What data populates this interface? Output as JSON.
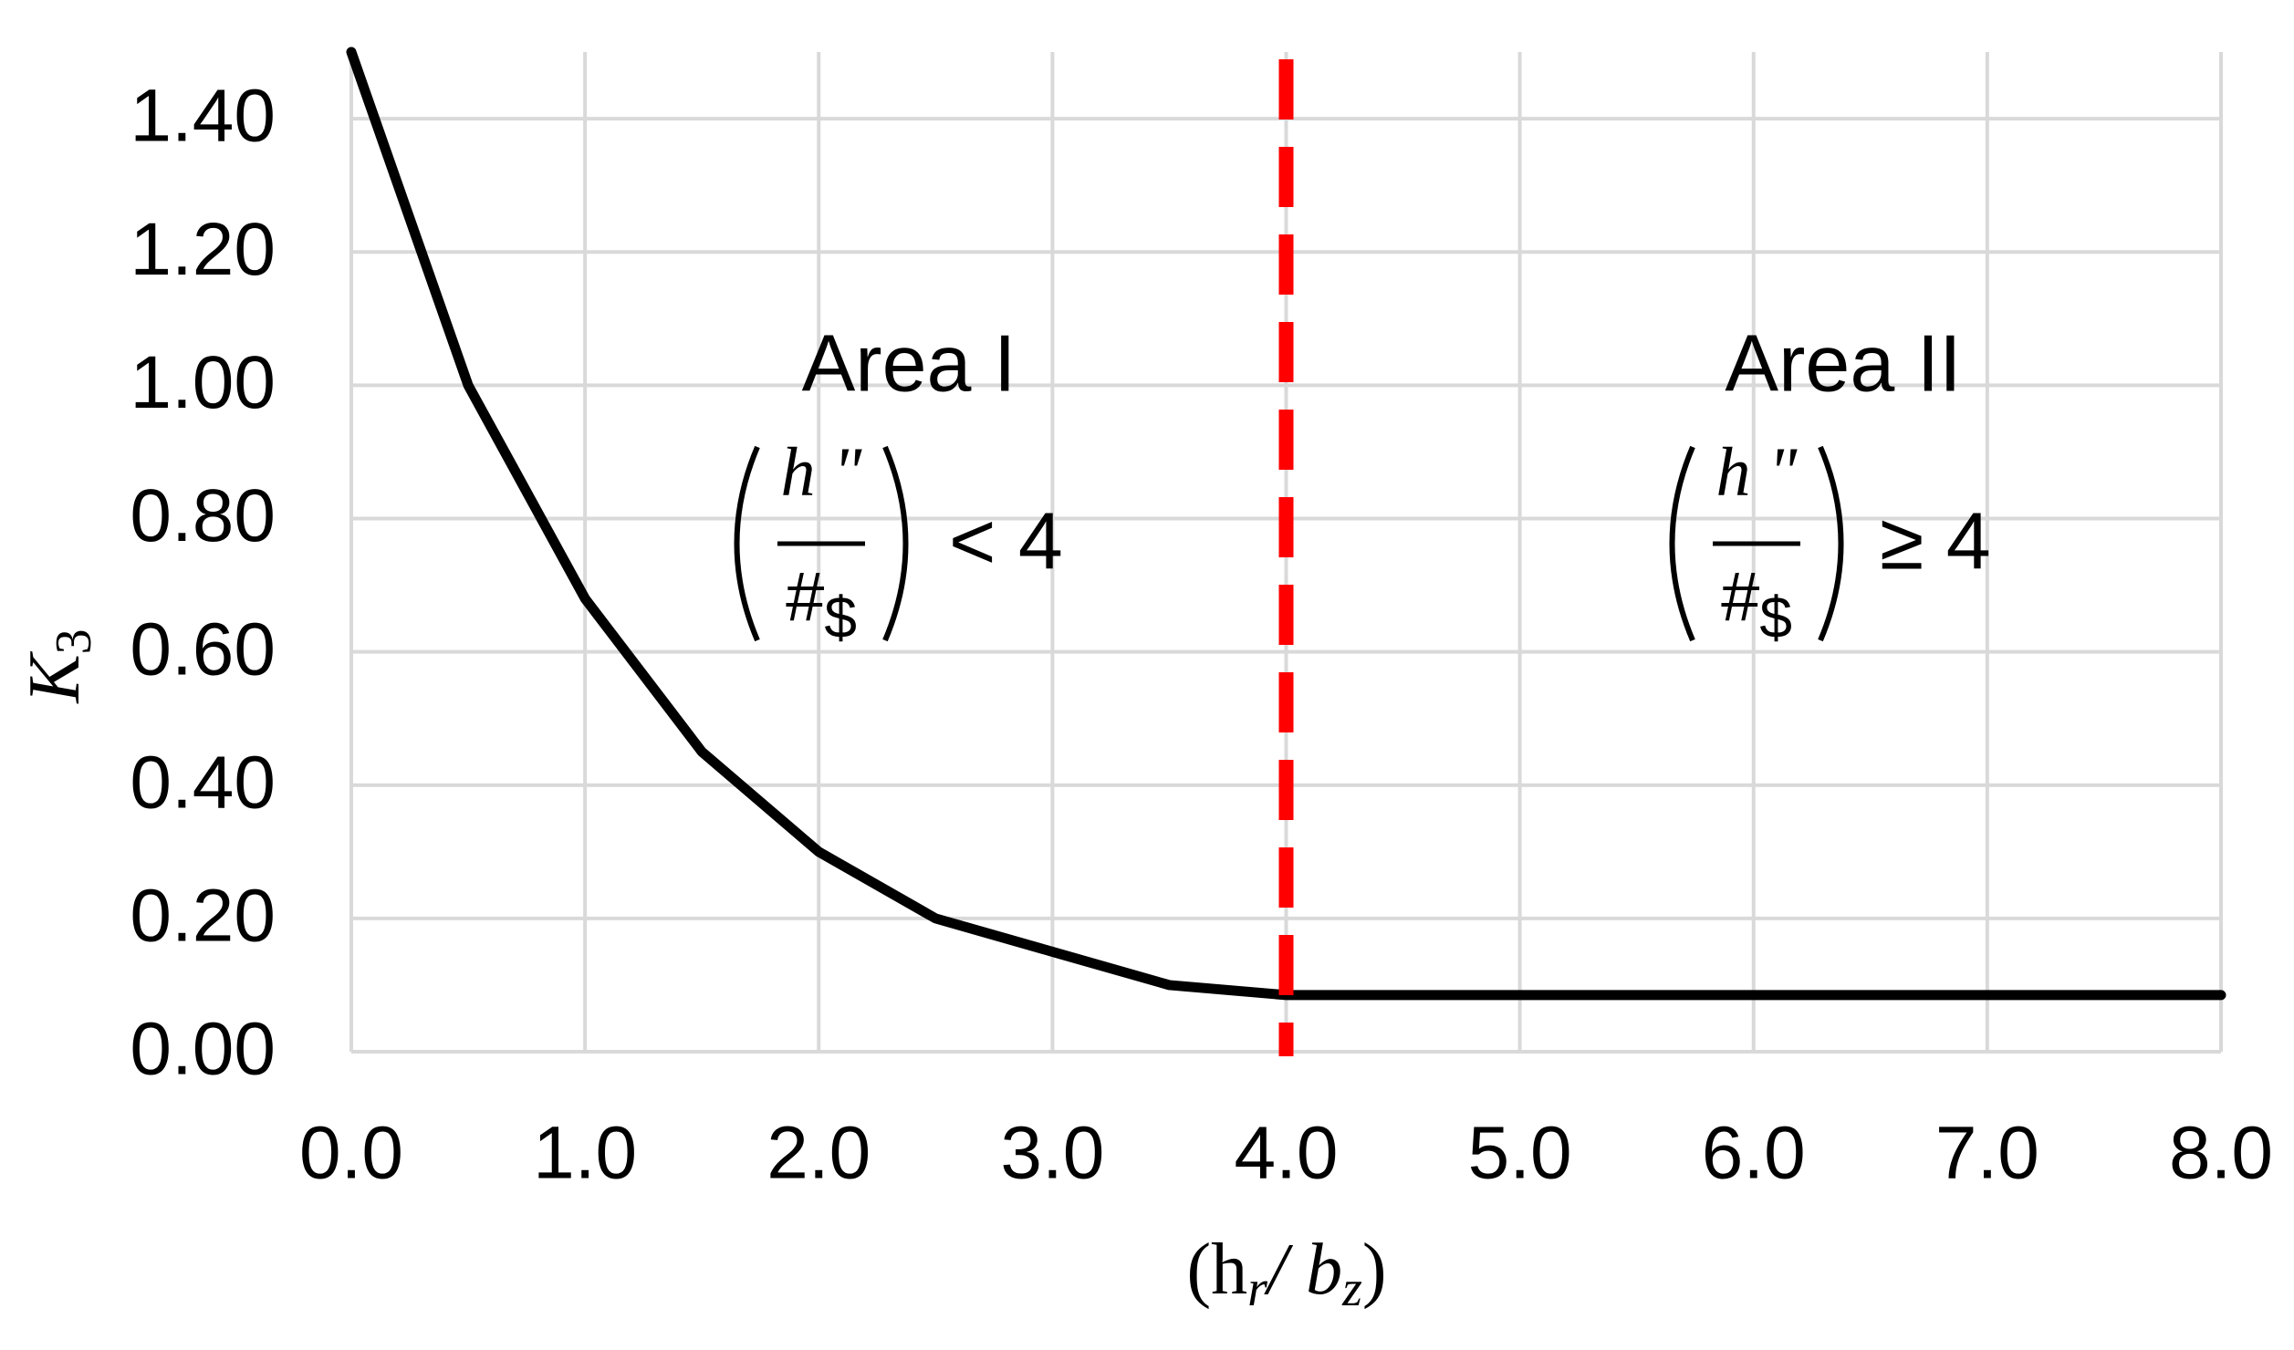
{
  "chart_data": {
    "type": "line",
    "x": [
      0,
      0.5,
      1,
      1.5,
      2,
      2.5,
      3,
      3.5,
      4,
      8
    ],
    "values": [
      1.5,
      1.0,
      0.68,
      0.45,
      0.3,
      0.2,
      0.15,
      0.1,
      0.085,
      0.085
    ],
    "color": "#000000",
    "xlim": [
      0,
      8
    ],
    "ylim": [
      0,
      1.5
    ],
    "xticks": [
      {
        "value": 0,
        "label": "0.0"
      },
      {
        "value": 1,
        "label": "1.0"
      },
      {
        "value": 2,
        "label": "2.0"
      },
      {
        "value": 3,
        "label": "3.0"
      },
      {
        "value": 4,
        "label": "4.0"
      },
      {
        "value": 5,
        "label": "5.0"
      },
      {
        "value": 6,
        "label": "6.0"
      },
      {
        "value": 7,
        "label": "7.0"
      },
      {
        "value": 8,
        "label": "8.0"
      }
    ],
    "yticks": [
      {
        "value": 0,
        "label": "0.00"
      },
      {
        "value": 0.2,
        "label": "0.20"
      },
      {
        "value": 0.4,
        "label": "0.40"
      },
      {
        "value": 0.6,
        "label": "0.60"
      },
      {
        "value": 0.8,
        "label": "0.80"
      },
      {
        "value": 1.0,
        "label": "1.00"
      },
      {
        "value": 1.2,
        "label": "1.20"
      },
      {
        "value": 1.4,
        "label": "1.40"
      }
    ],
    "grid": true,
    "xlabel": [
      "(h",
      "r",
      "/ b",
      "z",
      ")"
    ],
    "ylabel": [
      "K",
      "3"
    ],
    "vline": {
      "x": 4,
      "color": "#ff0000"
    },
    "annotations": [
      {
        "title": "Area I",
        "numerator": "h \"",
        "denominator": "#",
        "denominator_sub": "$",
        "relation": "< 4"
      },
      {
        "title": "Area II",
        "numerator": "h \"",
        "denominator": "#",
        "denominator_sub": "$",
        "relation": "≥ 4"
      }
    ]
  }
}
